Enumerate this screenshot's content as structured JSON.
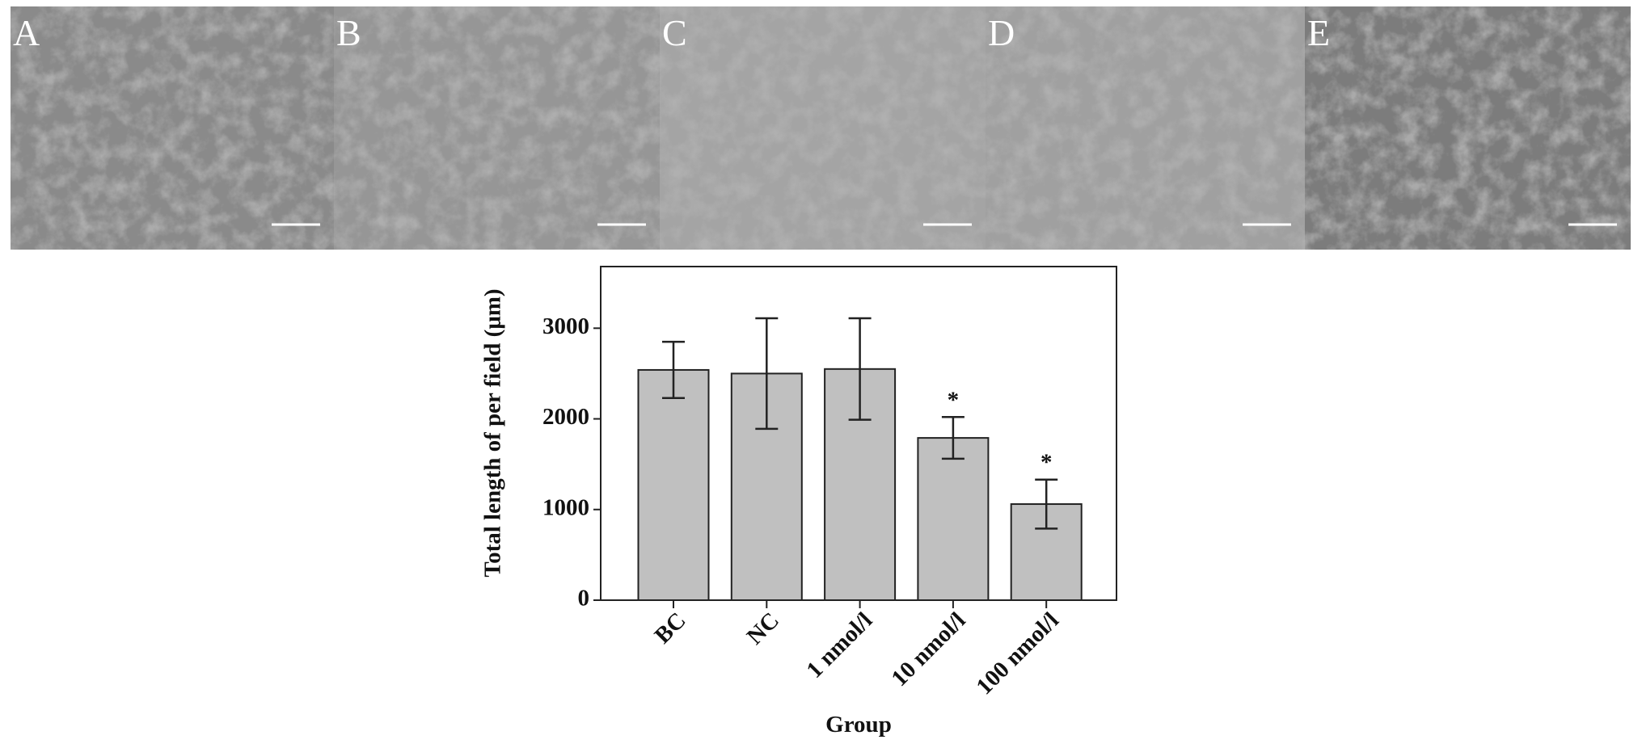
{
  "panels": [
    {
      "label": "A"
    },
    {
      "label": "B"
    },
    {
      "label": "C"
    },
    {
      "label": "D"
    },
    {
      "label": "E"
    }
  ],
  "chart_data": {
    "type": "bar",
    "x_label": "Group",
    "y_label": "Total length of per field (μm)",
    "categories": [
      "BC",
      "NC",
      "1 nmol/l",
      "10 nmol/l",
      "100 nmol/l"
    ],
    "values": [
      2540,
      2500,
      2550,
      1790,
      1060
    ],
    "errors": [
      310,
      610,
      560,
      230,
      270
    ],
    "annotations": [
      null,
      null,
      null,
      "*",
      "*"
    ],
    "color": "#c0c0c0",
    "ylim": [
      0,
      3680
    ],
    "yticks": [
      0,
      1000,
      2000,
      3000
    ],
    "grid": false
  }
}
